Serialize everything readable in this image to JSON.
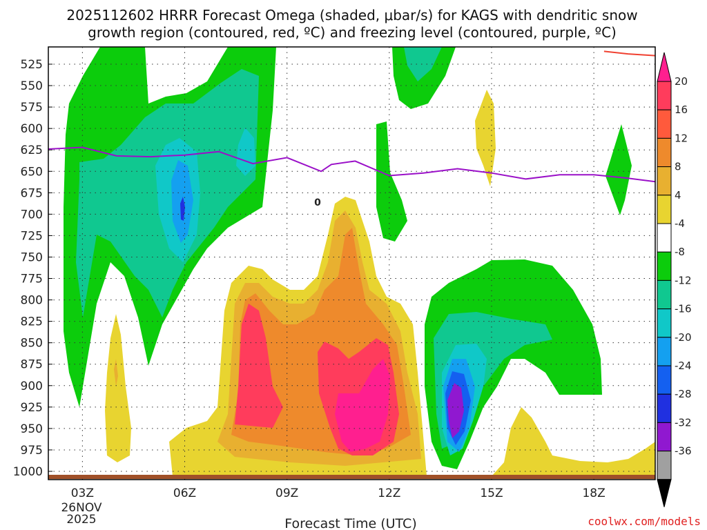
{
  "chart_data": {
    "type": "contour",
    "title_line1": "2025112602 HRRR Forecast Omega (shaded, μbar/s) for KAGS with dendritic snow",
    "title_line2": "growth region (contoured, red, ºC) and freezing level (contoured, purple, ºC)",
    "xlabel": "Forecast Time (UTC)",
    "date_label_line1": "26NOV",
    "date_label_line2": "2025",
    "credit": "coolwx.com/models",
    "x_ticks": [
      "03Z",
      "06Z",
      "09Z",
      "12Z",
      "15Z",
      "18Z"
    ],
    "x_tick_hours": [
      3,
      6,
      9,
      12,
      15,
      18
    ],
    "xlim_hours": [
      2,
      19.8
    ],
    "y_ticks": [
      525,
      550,
      575,
      600,
      625,
      650,
      675,
      700,
      725,
      750,
      775,
      800,
      825,
      850,
      875,
      900,
      925,
      950,
      975,
      1000
    ],
    "ylim_mb": [
      510,
      1005
    ],
    "freezing_level_label": "0",
    "freezing_level": {
      "hours": [
        2,
        3,
        4,
        5,
        6,
        7,
        8,
        9,
        10,
        10.3,
        11,
        12,
        13,
        14,
        15,
        16,
        17,
        18,
        19,
        19.8
      ],
      "pressure": [
        624,
        622,
        632,
        633,
        631,
        627,
        641,
        634,
        650,
        642,
        638,
        655,
        652,
        647,
        652,
        659,
        654,
        654,
        658,
        662
      ]
    },
    "dendritic_growth_label": "",
    "dendritic_growth": {
      "hours": [
        18.3,
        19,
        19.8
      ],
      "pressure": [
        510,
        513,
        515
      ]
    },
    "colorbar": {
      "levels": [
        20,
        16,
        12,
        8,
        4,
        -4,
        -8,
        -12,
        -16,
        -20,
        -24,
        -28,
        -32,
        -36
      ],
      "colors": [
        "#ff3c5c",
        "#ff5a3c",
        "#ee8a2c",
        "#e8b030",
        "#e8d430",
        "#ffffff",
        "#0ccc0c",
        "#10c890",
        "#10c8c8",
        "#14a0f0",
        "#1460f0",
        "#2030e0",
        "#9018d0",
        "#a0a0a0"
      ],
      "top_cap_color": "#ff1f8f",
      "bottom_cap_color": "#000000"
    },
    "colors": {
      "freezing_level": "#9a10c8",
      "dendritic": "#f04030",
      "surface": "#a05028"
    }
  }
}
